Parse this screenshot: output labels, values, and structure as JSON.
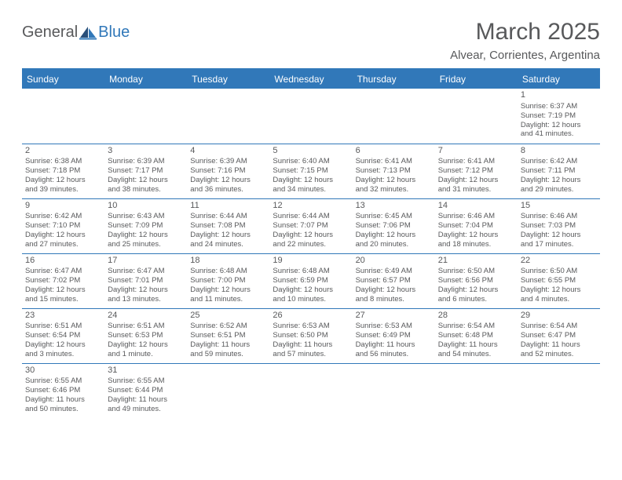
{
  "brand": {
    "general": "General",
    "blue": "Blue"
  },
  "title": "March 2025",
  "location": "Alvear, Corrientes, Argentina",
  "colors": {
    "accent": "#3178b9",
    "text": "#58595b",
    "header_text": "#ffffff",
    "background": "#ffffff"
  },
  "typography": {
    "title_fontsize": 30,
    "location_fontsize": 15,
    "day_header_fontsize": 12,
    "cell_fontsize": 9.5
  },
  "day_headers": [
    "Sunday",
    "Monday",
    "Tuesday",
    "Wednesday",
    "Thursday",
    "Friday",
    "Saturday"
  ],
  "weeks": [
    [
      null,
      null,
      null,
      null,
      null,
      null,
      {
        "n": "1",
        "sr": "Sunrise: 6:37 AM",
        "ss": "Sunset: 7:19 PM",
        "d1": "Daylight: 12 hours",
        "d2": "and 41 minutes."
      }
    ],
    [
      {
        "n": "2",
        "sr": "Sunrise: 6:38 AM",
        "ss": "Sunset: 7:18 PM",
        "d1": "Daylight: 12 hours",
        "d2": "and 39 minutes."
      },
      {
        "n": "3",
        "sr": "Sunrise: 6:39 AM",
        "ss": "Sunset: 7:17 PM",
        "d1": "Daylight: 12 hours",
        "d2": "and 38 minutes."
      },
      {
        "n": "4",
        "sr": "Sunrise: 6:39 AM",
        "ss": "Sunset: 7:16 PM",
        "d1": "Daylight: 12 hours",
        "d2": "and 36 minutes."
      },
      {
        "n": "5",
        "sr": "Sunrise: 6:40 AM",
        "ss": "Sunset: 7:15 PM",
        "d1": "Daylight: 12 hours",
        "d2": "and 34 minutes."
      },
      {
        "n": "6",
        "sr": "Sunrise: 6:41 AM",
        "ss": "Sunset: 7:13 PM",
        "d1": "Daylight: 12 hours",
        "d2": "and 32 minutes."
      },
      {
        "n": "7",
        "sr": "Sunrise: 6:41 AM",
        "ss": "Sunset: 7:12 PM",
        "d1": "Daylight: 12 hours",
        "d2": "and 31 minutes."
      },
      {
        "n": "8",
        "sr": "Sunrise: 6:42 AM",
        "ss": "Sunset: 7:11 PM",
        "d1": "Daylight: 12 hours",
        "d2": "and 29 minutes."
      }
    ],
    [
      {
        "n": "9",
        "sr": "Sunrise: 6:42 AM",
        "ss": "Sunset: 7:10 PM",
        "d1": "Daylight: 12 hours",
        "d2": "and 27 minutes."
      },
      {
        "n": "10",
        "sr": "Sunrise: 6:43 AM",
        "ss": "Sunset: 7:09 PM",
        "d1": "Daylight: 12 hours",
        "d2": "and 25 minutes."
      },
      {
        "n": "11",
        "sr": "Sunrise: 6:44 AM",
        "ss": "Sunset: 7:08 PM",
        "d1": "Daylight: 12 hours",
        "d2": "and 24 minutes."
      },
      {
        "n": "12",
        "sr": "Sunrise: 6:44 AM",
        "ss": "Sunset: 7:07 PM",
        "d1": "Daylight: 12 hours",
        "d2": "and 22 minutes."
      },
      {
        "n": "13",
        "sr": "Sunrise: 6:45 AM",
        "ss": "Sunset: 7:06 PM",
        "d1": "Daylight: 12 hours",
        "d2": "and 20 minutes."
      },
      {
        "n": "14",
        "sr": "Sunrise: 6:46 AM",
        "ss": "Sunset: 7:04 PM",
        "d1": "Daylight: 12 hours",
        "d2": "and 18 minutes."
      },
      {
        "n": "15",
        "sr": "Sunrise: 6:46 AM",
        "ss": "Sunset: 7:03 PM",
        "d1": "Daylight: 12 hours",
        "d2": "and 17 minutes."
      }
    ],
    [
      {
        "n": "16",
        "sr": "Sunrise: 6:47 AM",
        "ss": "Sunset: 7:02 PM",
        "d1": "Daylight: 12 hours",
        "d2": "and 15 minutes."
      },
      {
        "n": "17",
        "sr": "Sunrise: 6:47 AM",
        "ss": "Sunset: 7:01 PM",
        "d1": "Daylight: 12 hours",
        "d2": "and 13 minutes."
      },
      {
        "n": "18",
        "sr": "Sunrise: 6:48 AM",
        "ss": "Sunset: 7:00 PM",
        "d1": "Daylight: 12 hours",
        "d2": "and 11 minutes."
      },
      {
        "n": "19",
        "sr": "Sunrise: 6:48 AM",
        "ss": "Sunset: 6:59 PM",
        "d1": "Daylight: 12 hours",
        "d2": "and 10 minutes."
      },
      {
        "n": "20",
        "sr": "Sunrise: 6:49 AM",
        "ss": "Sunset: 6:57 PM",
        "d1": "Daylight: 12 hours",
        "d2": "and 8 minutes."
      },
      {
        "n": "21",
        "sr": "Sunrise: 6:50 AM",
        "ss": "Sunset: 6:56 PM",
        "d1": "Daylight: 12 hours",
        "d2": "and 6 minutes."
      },
      {
        "n": "22",
        "sr": "Sunrise: 6:50 AM",
        "ss": "Sunset: 6:55 PM",
        "d1": "Daylight: 12 hours",
        "d2": "and 4 minutes."
      }
    ],
    [
      {
        "n": "23",
        "sr": "Sunrise: 6:51 AM",
        "ss": "Sunset: 6:54 PM",
        "d1": "Daylight: 12 hours",
        "d2": "and 3 minutes."
      },
      {
        "n": "24",
        "sr": "Sunrise: 6:51 AM",
        "ss": "Sunset: 6:53 PM",
        "d1": "Daylight: 12 hours",
        "d2": "and 1 minute."
      },
      {
        "n": "25",
        "sr": "Sunrise: 6:52 AM",
        "ss": "Sunset: 6:51 PM",
        "d1": "Daylight: 11 hours",
        "d2": "and 59 minutes."
      },
      {
        "n": "26",
        "sr": "Sunrise: 6:53 AM",
        "ss": "Sunset: 6:50 PM",
        "d1": "Daylight: 11 hours",
        "d2": "and 57 minutes."
      },
      {
        "n": "27",
        "sr": "Sunrise: 6:53 AM",
        "ss": "Sunset: 6:49 PM",
        "d1": "Daylight: 11 hours",
        "d2": "and 56 minutes."
      },
      {
        "n": "28",
        "sr": "Sunrise: 6:54 AM",
        "ss": "Sunset: 6:48 PM",
        "d1": "Daylight: 11 hours",
        "d2": "and 54 minutes."
      },
      {
        "n": "29",
        "sr": "Sunrise: 6:54 AM",
        "ss": "Sunset: 6:47 PM",
        "d1": "Daylight: 11 hours",
        "d2": "and 52 minutes."
      }
    ],
    [
      {
        "n": "30",
        "sr": "Sunrise: 6:55 AM",
        "ss": "Sunset: 6:46 PM",
        "d1": "Daylight: 11 hours",
        "d2": "and 50 minutes."
      },
      {
        "n": "31",
        "sr": "Sunrise: 6:55 AM",
        "ss": "Sunset: 6:44 PM",
        "d1": "Daylight: 11 hours",
        "d2": "and 49 minutes."
      },
      null,
      null,
      null,
      null,
      null
    ]
  ]
}
